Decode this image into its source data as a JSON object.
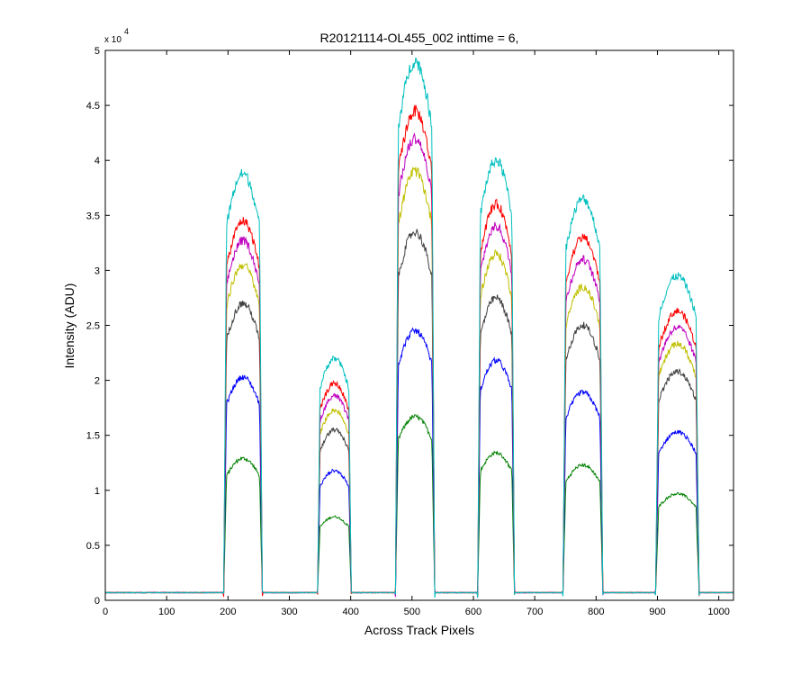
{
  "chart_data": {
    "type": "line",
    "title": "R20121114-OL455_002 inttime = 6,",
    "xlabel": "Across Track Pixels",
    "ylabel": "Intensity (ADU)",
    "y_exponent_label": "x 10",
    "y_exponent_power": "4",
    "xlim": [
      0,
      1024
    ],
    "ylim": [
      0,
      50000
    ],
    "x_ticks": [
      0,
      100,
      200,
      300,
      400,
      500,
      600,
      700,
      800,
      900,
      1000
    ],
    "x_tick_labels": [
      "0",
      "100",
      "200",
      "300",
      "400",
      "500",
      "600",
      "700",
      "800",
      "900",
      "1000"
    ],
    "y_ticks": [
      0,
      5000,
      10000,
      15000,
      20000,
      25000,
      30000,
      35000,
      40000,
      45000,
      50000
    ],
    "y_tick_labels": [
      "0",
      "0.5",
      "1",
      "1.5",
      "2",
      "2.5",
      "3",
      "3.5",
      "4",
      "4.5",
      "5"
    ],
    "grid": false,
    "baseline": 700,
    "bands": [
      {
        "x_start": 193,
        "x_end": 256
      },
      {
        "x_start": 346,
        "x_end": 401
      },
      {
        "x_start": 473,
        "x_end": 537
      },
      {
        "x_start": 607,
        "x_end": 667
      },
      {
        "x_start": 746,
        "x_end": 811
      },
      {
        "x_start": 897,
        "x_end": 968
      }
    ],
    "series": [
      {
        "color": "#00bfbf",
        "band_peaks": [
          38800,
          22000,
          49000,
          40000,
          36500,
          29500
        ]
      },
      {
        "color": "#ff0000",
        "band_peaks": [
          34500,
          19700,
          44500,
          36000,
          33000,
          26300
        ]
      },
      {
        "color": "#bf00bf",
        "band_peaks": [
          32700,
          18600,
          42000,
          34000,
          31000,
          24800
        ]
      },
      {
        "color": "#bfbf00",
        "band_peaks": [
          30500,
          17300,
          39000,
          31500,
          28500,
          23300
        ]
      },
      {
        "color": "#404040",
        "band_peaks": [
          27000,
          15500,
          33500,
          27500,
          25000,
          20800
        ]
      },
      {
        "color": "#0000ff",
        "band_peaks": [
          20300,
          11800,
          24500,
          21800,
          18900,
          15300
        ]
      },
      {
        "color": "#008000",
        "band_peaks": [
          12900,
          7600,
          16700,
          13400,
          12300,
          9700
        ]
      }
    ]
  }
}
